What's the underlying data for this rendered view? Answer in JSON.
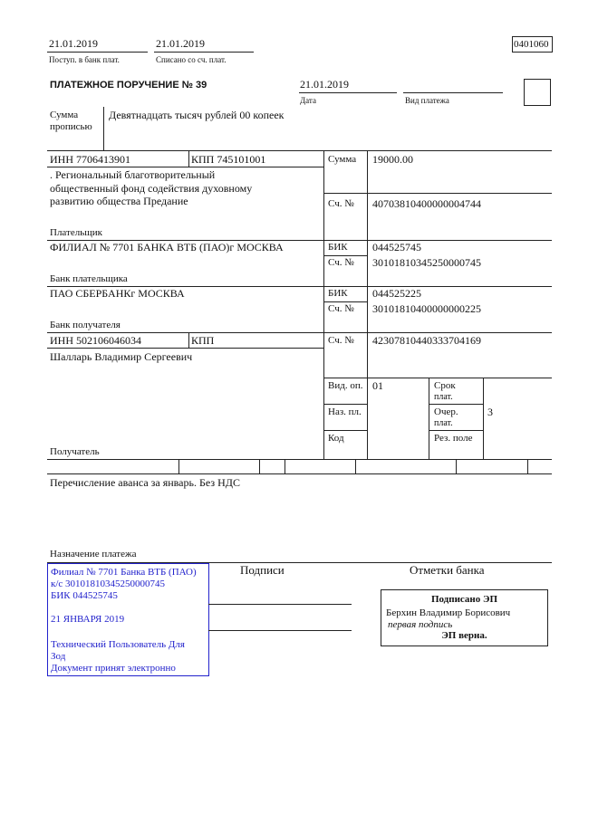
{
  "header": {
    "received_date": "21.01.2019",
    "received_label": "Поступ. в банк плат.",
    "debited_date": "21.01.2019",
    "debited_label": "Списано со сч. плат.",
    "form_code": "0401060"
  },
  "title": "ПЛАТЕЖНОЕ ПОРУЧЕНИЕ № 39",
  "date": "21.01.2019",
  "date_label": "Дата",
  "payment_type_label": "Вид платежа",
  "amount_words_label_1": "Сумма",
  "amount_words_label_2": "прописью",
  "amount_words": "Девятнадцать тысяч рублей 00 копеек",
  "payer": {
    "inn": "ИНН 7706413901",
    "kpp": "КПП 745101001",
    "name_1": ". Региональный благотворительный",
    "name_2": "общественный фонд содействия духовному",
    "name_3": "развитию общества Предание",
    "label": "Плательщик",
    "sum_label": "Сумма",
    "sum": "19000.00",
    "account_label": "Сч. №",
    "account": "40703810400000004744"
  },
  "payer_bank": {
    "name": "ФИЛИАЛ № 7701 БАНКА ВТБ (ПАО)г МОСКВА",
    "label": "Банк плательщика",
    "bik_label": "БИК",
    "bik": "044525745",
    "account_label": "Сч. №",
    "account": "30101810345250000745"
  },
  "payee_bank": {
    "name": "ПАО СБЕРБАНКг МОСКВА",
    "label": "Банк получателя",
    "bik_label": "БИК",
    "bik": "044525225",
    "account_label": "Сч. №",
    "account": "30101810400000000225"
  },
  "payee": {
    "inn": "ИНН 502106046034",
    "kpp": "КПП",
    "name": "Шалларь Владимир Сергеевич",
    "label": "Получатель",
    "account_label": "Сч. №",
    "account": "42307810440333704169"
  },
  "codes": {
    "op_type_label": "Вид. оп.",
    "op_type": "01",
    "purpose_code_label": "Наз. пл.",
    "code_label": "Код",
    "term_label_1": "Срок",
    "term_label_2": "плат.",
    "priority_label_1": "Очер.",
    "priority_label_2": "плат.",
    "priority": "3",
    "reserve_label": "Рез. поле"
  },
  "purpose": "Перечисление аванса за январь. Без НДС",
  "purpose_label": "Назначение платежа",
  "stamp": {
    "line_1": "Филиал № 7701 Банка ВТБ (ПАО)",
    "line_2": "к/с 30101810345250000745",
    "line_3": "БИК 044525745",
    "line_4": "21 ЯНВАРЯ 2019",
    "line_5": "Технический Пользователь Для",
    "line_6": "Зод",
    "line_7": "Документ принят электронно",
    "color": "#2222cc"
  },
  "signatures_label": "Подписи",
  "bank_marks_label": "Отметки банка",
  "e_signature": {
    "title": "Подписано ЭП",
    "signer": "Берхин Владимир Борисович",
    "role": "первая подпись",
    "status": "ЭП верна."
  }
}
